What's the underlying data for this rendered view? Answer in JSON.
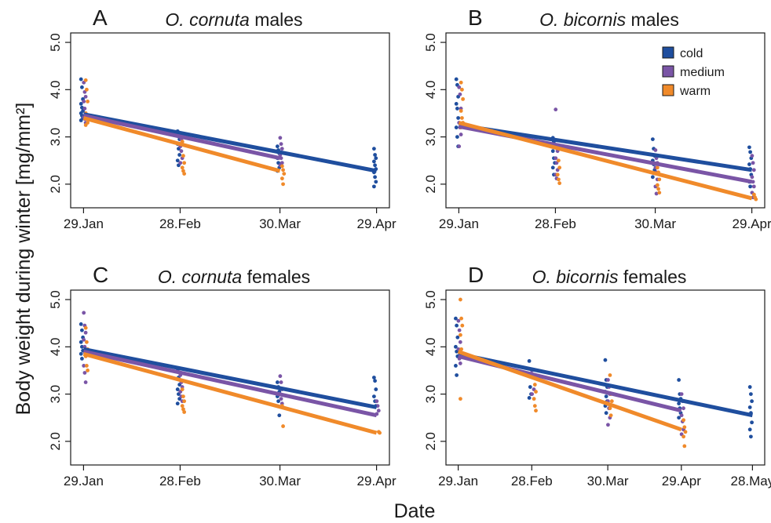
{
  "figure": {
    "ylabel": "Body weight during winter [mg/mm²]",
    "xlabel": "Date"
  },
  "colors": {
    "cold": "#1f4e9e",
    "medium": "#7a55a6",
    "warm": "#f08a2a"
  },
  "legend": {
    "position": "top-right of panel B",
    "entries": [
      {
        "key": "cold",
        "label": "cold"
      },
      {
        "key": "medium",
        "label": "medium"
      },
      {
        "key": "warm",
        "label": "warm"
      }
    ]
  },
  "chart_data": [
    {
      "type": "scatter",
      "letter": "A",
      "title_italic": "O. cornuta",
      "title_rest": " males",
      "x_ticks": [
        "29.Jan",
        "28.Feb",
        "30.Mar",
        "29.Apr"
      ],
      "xlim": [
        "2000-01-25",
        "2000-05-03"
      ],
      "ylim": [
        1.5,
        5.2
      ],
      "y_ticks": [
        "2.0",
        "3.0",
        "4.0",
        "5.0"
      ],
      "series": [
        {
          "name": "cold",
          "fit": [
            [
              "2000-01-29",
              3.48
            ],
            [
              "2000-04-29",
              2.28
            ]
          ],
          "points": [
            {
              "x": "2000-01-29",
              "y": [
                4.22,
                4.05,
                3.8,
                3.7,
                3.62,
                3.55,
                3.5,
                3.45,
                3.4,
                3.35
              ]
            },
            {
              "x": "2000-02-28",
              "y": [
                3.12,
                3.05,
                2.95,
                2.85,
                2.75,
                2.62,
                2.5,
                2.4
              ]
            },
            {
              "x": "2000-03-30",
              "y": [
                2.8,
                2.72,
                2.65,
                2.55,
                2.45,
                2.35,
                2.28
              ]
            },
            {
              "x": "2000-04-29",
              "y": [
                2.75,
                2.62,
                2.55,
                2.48,
                2.4,
                2.32,
                2.25,
                2.15,
                2.05,
                1.95
              ]
            }
          ]
        },
        {
          "name": "medium",
          "fit": [
            [
              "2000-01-29",
              3.45
            ],
            [
              "2000-03-30",
              2.55
            ]
          ],
          "points": [
            {
              "x": "2000-01-29",
              "y": [
                4.15,
                3.95,
                3.85,
                3.75,
                3.6,
                3.5,
                3.42,
                3.38,
                3.3
              ]
            },
            {
              "x": "2000-02-28",
              "y": [
                3.05,
                2.95,
                2.9,
                2.8,
                2.7,
                2.55,
                2.45
              ]
            },
            {
              "x": "2000-03-30",
              "y": [
                2.98,
                2.85,
                2.75,
                2.62,
                2.55,
                2.45,
                2.4
              ]
            }
          ]
        },
        {
          "name": "warm",
          "fit": [
            [
              "2000-01-29",
              3.4
            ],
            [
              "2000-03-30",
              2.28
            ]
          ],
          "points": [
            {
              "x": "2000-01-29",
              "y": [
                4.2,
                4.0,
                3.75,
                3.5,
                3.38,
                3.3,
                3.25
              ]
            },
            {
              "x": "2000-02-28",
              "y": [
                2.9,
                2.6,
                2.45,
                2.35,
                2.28,
                2.22
              ]
            },
            {
              "x": "2000-03-30",
              "y": [
                2.38,
                2.3,
                2.22,
                2.12,
                2.0
              ]
            }
          ]
        }
      ]
    },
    {
      "type": "scatter",
      "letter": "B",
      "title_italic": "O. bicornis",
      "title_rest": " males",
      "x_ticks": [
        "29.Jan",
        "28.Feb",
        "30.Mar",
        "29.Apr"
      ],
      "xlim": [
        "2000-01-25",
        "2000-05-03"
      ],
      "ylim": [
        1.5,
        5.2
      ],
      "y_ticks": [
        "2.0",
        "3.0",
        "4.0",
        "5.0"
      ],
      "series": [
        {
          "name": "cold",
          "fit": [
            [
              "2000-01-29",
              3.25
            ],
            [
              "2000-04-29",
              2.3
            ]
          ],
          "points": [
            {
              "x": "2000-01-29",
              "y": [
                4.22,
                4.1,
                3.85,
                3.7,
                3.6,
                3.4,
                3.2,
                3.0,
                2.8
              ]
            },
            {
              "x": "2000-02-28",
              "y": [
                2.98,
                2.9,
                2.8,
                2.7,
                2.55,
                2.45,
                2.35,
                2.2
              ]
            },
            {
              "x": "2000-03-30",
              "y": [
                2.95,
                2.75,
                2.6,
                2.5,
                2.42,
                2.3,
                2.15
              ]
            },
            {
              "x": "2000-04-29",
              "y": [
                2.78,
                2.68,
                2.55,
                2.42,
                2.32,
                2.2,
                2.05,
                1.95
              ]
            }
          ]
        },
        {
          "name": "medium",
          "fit": [
            [
              "2000-01-29",
              3.22
            ],
            [
              "2000-04-29",
              2.05
            ]
          ],
          "points": [
            {
              "x": "2000-01-29",
              "y": [
                4.05,
                3.9,
                3.6,
                3.3,
                3.2,
                3.05,
                2.8
              ]
            },
            {
              "x": "2000-02-28",
              "y": [
                3.58,
                2.8,
                2.7,
                2.55,
                2.45,
                2.3,
                2.2,
                2.12
              ]
            },
            {
              "x": "2000-03-30",
              "y": [
                2.72,
                2.55,
                2.45,
                2.35,
                2.25,
                2.1,
                1.95,
                1.8
              ]
            },
            {
              "x": "2000-04-29",
              "y": [
                2.6,
                2.45,
                2.3,
                2.15,
                2.05,
                1.95,
                1.82,
                1.72
              ]
            }
          ]
        },
        {
          "name": "warm",
          "fit": [
            [
              "2000-01-29",
              3.3
            ],
            [
              "2000-04-29",
              1.7
            ]
          ],
          "points": [
            {
              "x": "2000-01-29",
              "y": [
                4.15,
                4.0,
                3.8,
                3.55,
                3.4,
                3.3,
                3.2
              ]
            },
            {
              "x": "2000-02-28",
              "y": [
                2.8,
                2.5,
                2.35,
                2.2,
                2.1,
                2.02
              ]
            },
            {
              "x": "2000-03-30",
              "y": [
                2.35,
                2.25,
                2.1,
                1.98,
                1.9,
                1.82
              ]
            },
            {
              "x": "2000-04-29",
              "y": [
                1.78,
                1.72,
                1.68
              ]
            }
          ]
        }
      ]
    },
    {
      "type": "scatter",
      "letter": "C",
      "title_italic": "O. cornuta",
      "title_rest": " females",
      "x_ticks": [
        "29.Jan",
        "28.Feb",
        "30.Mar",
        "29.Apr"
      ],
      "xlim": [
        "2000-01-25",
        "2000-05-03"
      ],
      "ylim": [
        1.5,
        5.2
      ],
      "y_ticks": [
        "2.0",
        "3.0",
        "4.0",
        "5.0"
      ],
      "series": [
        {
          "name": "cold",
          "fit": [
            [
              "2000-01-29",
              3.95
            ],
            [
              "2000-04-29",
              2.72
            ]
          ],
          "points": [
            {
              "x": "2000-01-29",
              "y": [
                4.48,
                4.35,
                4.2,
                4.1,
                4.0,
                3.92,
                3.85,
                3.75
              ]
            },
            {
              "x": "2000-02-28",
              "y": [
                3.5,
                3.35,
                3.2,
                3.1,
                3.0,
                2.9,
                2.8
              ]
            },
            {
              "x": "2000-03-30",
              "y": [
                3.25,
                3.15,
                3.05,
                2.95,
                2.85,
                2.55
              ]
            },
            {
              "x": "2000-04-29",
              "y": [
                3.35,
                3.28,
                3.1,
                2.95,
                2.85,
                2.75
              ]
            }
          ]
        },
        {
          "name": "medium",
          "fit": [
            [
              "2000-01-29",
              3.9
            ],
            [
              "2000-04-29",
              2.55
            ]
          ],
          "points": [
            {
              "x": "2000-01-29",
              "y": [
                4.72,
                4.45,
                4.3,
                4.15,
                4.0,
                3.9,
                3.6,
                3.45,
                3.25
              ]
            },
            {
              "x": "2000-02-28",
              "y": [
                3.4,
                3.25,
                3.15,
                3.05,
                2.95,
                2.85
              ]
            },
            {
              "x": "2000-03-30",
              "y": [
                3.38,
                3.25,
                3.1,
                3.0,
                2.9,
                2.8
              ]
            },
            {
              "x": "2000-04-29",
              "y": [
                2.85,
                2.75,
                2.65,
                2.58
              ]
            }
          ]
        },
        {
          "name": "warm",
          "fit": [
            [
              "2000-01-29",
              3.85
            ],
            [
              "2000-04-29",
              2.18
            ]
          ],
          "points": [
            {
              "x": "2000-01-29",
              "y": [
                4.4,
                4.1,
                3.95,
                3.8,
                3.6,
                3.5
              ]
            },
            {
              "x": "2000-02-28",
              "y": [
                3.1,
                2.95,
                2.85,
                2.75,
                2.68,
                2.62
              ]
            },
            {
              "x": "2000-03-30",
              "y": [
                2.75,
                2.32
              ]
            },
            {
              "x": "2000-04-29",
              "y": [
                2.2,
                2.18
              ]
            }
          ]
        }
      ]
    },
    {
      "type": "scatter",
      "letter": "D",
      "title_italic": "O. bicornis",
      "title_rest": " females",
      "x_ticks": [
        "29.Jan",
        "28.Feb",
        "30.Mar",
        "29.Apr",
        "28.May"
      ],
      "xlim": [
        "2000-01-24",
        "2000-06-02"
      ],
      "ylim": [
        1.5,
        5.2
      ],
      "y_ticks": [
        "2.0",
        "3.0",
        "4.0",
        "5.0"
      ],
      "series": [
        {
          "name": "cold",
          "fit": [
            [
              "2000-01-29",
              3.85
            ],
            [
              "2000-05-28",
              2.55
            ]
          ],
          "points": [
            {
              "x": "2000-01-29",
              "y": [
                4.6,
                4.45,
                4.2,
                4.0,
                3.9,
                3.8,
                3.6,
                3.4
              ]
            },
            {
              "x": "2000-02-28",
              "y": [
                3.7,
                3.15,
                3.0,
                2.92
              ]
            },
            {
              "x": "2000-03-30",
              "y": [
                3.72,
                3.3,
                3.15,
                3.05,
                2.95,
                2.85,
                2.75,
                2.6
              ]
            },
            {
              "x": "2000-04-29",
              "y": [
                3.3,
                3.0,
                2.9,
                2.8,
                2.7,
                2.6,
                2.5
              ]
            },
            {
              "x": "2000-05-28",
              "y": [
                3.15,
                3.0,
                2.85,
                2.72,
                2.6,
                2.4,
                2.25,
                2.1
              ]
            }
          ]
        },
        {
          "name": "medium",
          "fit": [
            [
              "2000-01-29",
              3.8
            ],
            [
              "2000-04-29",
              2.65
            ]
          ],
          "points": [
            {
              "x": "2000-01-29",
              "y": [
                4.55,
                4.35,
                4.1,
                3.95,
                3.75,
                3.65
              ]
            },
            {
              "x": "2000-02-28",
              "y": [
                3.5,
                3.35,
                3.1,
                3.0
              ]
            },
            {
              "x": "2000-03-30",
              "y": [
                3.3,
                3.15,
                3.0,
                2.85,
                2.7,
                2.5,
                2.35
              ]
            },
            {
              "x": "2000-04-29",
              "y": [
                3.0,
                2.85,
                2.7,
                2.55,
                2.42,
                2.25,
                2.15
              ]
            }
          ]
        },
        {
          "name": "warm",
          "fit": [
            [
              "2000-01-29",
              3.9
            ],
            [
              "2000-04-29",
              2.25
            ]
          ],
          "points": [
            {
              "x": "2000-01-29",
              "y": [
                5.0,
                4.6,
                4.45,
                4.25,
                3.95,
                3.8,
                2.9
              ]
            },
            {
              "x": "2000-02-28",
              "y": [
                3.35,
                3.2,
                3.05,
                2.9,
                2.75,
                2.65
              ]
            },
            {
              "x": "2000-03-30",
              "y": [
                3.4,
                3.0,
                2.85,
                2.7,
                2.55
              ]
            },
            {
              "x": "2000-04-29",
              "y": [
                2.45,
                2.3,
                2.2,
                2.1,
                1.9
              ]
            }
          ]
        }
      ]
    }
  ]
}
